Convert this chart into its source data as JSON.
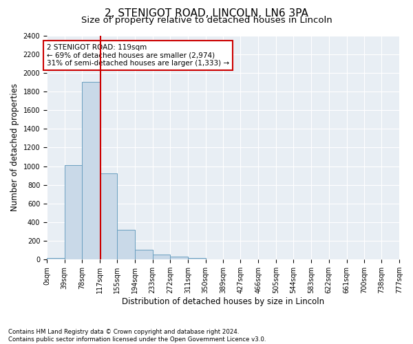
{
  "title": "2, STENIGOT ROAD, LINCOLN, LN6 3PA",
  "subtitle": "Size of property relative to detached houses in Lincoln",
  "xlabel": "Distribution of detached houses by size in Lincoln",
  "ylabel": "Number of detached properties",
  "bin_edges": [
    0,
    39,
    78,
    117,
    155,
    194,
    233,
    272,
    311,
    350,
    389,
    427,
    466,
    505,
    544,
    583,
    622,
    661,
    700,
    738,
    777
  ],
  "bar_heights": [
    20,
    1010,
    1900,
    920,
    315,
    105,
    55,
    30,
    20,
    0,
    0,
    0,
    0,
    0,
    0,
    0,
    0,
    0,
    0,
    0
  ],
  "bar_color": "#c9d9e8",
  "bar_edge_color": "#6a9fc0",
  "property_line_x": 119,
  "property_line_color": "#cc0000",
  "annotation_text": "2 STENIGOT ROAD: 119sqm\n← 69% of detached houses are smaller (2,974)\n31% of semi-detached houses are larger (1,333) →",
  "annotation_box_color": "#cc0000",
  "ylim": [
    0,
    2400
  ],
  "yticks": [
    0,
    200,
    400,
    600,
    800,
    1000,
    1200,
    1400,
    1600,
    1800,
    2000,
    2200,
    2400
  ],
  "tick_labels": [
    "0sqm",
    "39sqm",
    "78sqm",
    "117sqm",
    "155sqm",
    "194sqm",
    "233sqm",
    "272sqm",
    "311sqm",
    "350sqm",
    "389sqm",
    "427sqm",
    "466sqm",
    "505sqm",
    "544sqm",
    "583sqm",
    "622sqm",
    "661sqm",
    "700sqm",
    "738sqm",
    "777sqm"
  ],
  "footnote": "Contains HM Land Registry data © Crown copyright and database right 2024.\nContains public sector information licensed under the Open Government Licence v3.0.",
  "plot_bg_color": "#e8eef4",
  "title_fontsize": 11,
  "subtitle_fontsize": 9.5,
  "axis_label_fontsize": 8.5,
  "tick_fontsize": 7
}
